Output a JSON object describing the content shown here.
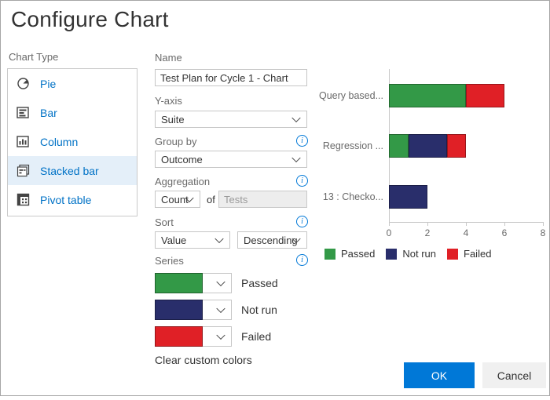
{
  "dialog": {
    "title": "Configure Chart"
  },
  "chart_type": {
    "label": "Chart Type",
    "items": [
      {
        "label": "Pie",
        "icon": "pie-chart-icon",
        "selected": false
      },
      {
        "label": "Bar",
        "icon": "bar-chart-icon",
        "selected": false
      },
      {
        "label": "Column",
        "icon": "column-chart-icon",
        "selected": false
      },
      {
        "label": "Stacked bar",
        "icon": "stacked-bar-chart-icon",
        "selected": true
      },
      {
        "label": "Pivot table",
        "icon": "pivot-table-icon",
        "selected": false
      }
    ]
  },
  "form": {
    "name": {
      "label": "Name",
      "value": "Test Plan for Cycle 1 - Chart"
    },
    "y_axis": {
      "label": "Y-axis",
      "value": "Suite"
    },
    "group_by": {
      "label": "Group by",
      "value": "Outcome"
    },
    "aggregation": {
      "label": "Aggregation",
      "value": "Count",
      "of_label": "of",
      "field_value": "Tests"
    },
    "sort": {
      "label": "Sort",
      "value": "Value",
      "direction": "Descending"
    },
    "series": {
      "label": "Series",
      "items": [
        {
          "name": "Passed",
          "color": "#339947"
        },
        {
          "name": "Not run",
          "color": "#292e6b"
        },
        {
          "name": "Failed",
          "color": "#e02026"
        }
      ]
    },
    "clear_colors_label": "Clear custom colors"
  },
  "chart_data": {
    "type": "bar",
    "orientation": "horizontal",
    "stacked": true,
    "categories": [
      "Query based...",
      "Regression ...",
      "13 : Checko..."
    ],
    "series": [
      {
        "name": "Passed",
        "color": "#339947",
        "values": [
          4,
          1,
          0
        ]
      },
      {
        "name": "Not run",
        "color": "#292e6b",
        "values": [
          0,
          2,
          2
        ]
      },
      {
        "name": "Failed",
        "color": "#e02026",
        "values": [
          2,
          1,
          0
        ]
      }
    ],
    "xlim": [
      0,
      8
    ],
    "x_ticks": [
      0,
      2,
      4,
      6,
      8
    ],
    "grid": false,
    "legend_position": "bottom"
  },
  "buttons": {
    "ok": "OK",
    "cancel": "Cancel"
  },
  "colors": {
    "accent_blue": "#0078d7",
    "link_blue": "#0072c6",
    "selected_bg": "#e4eff9"
  }
}
